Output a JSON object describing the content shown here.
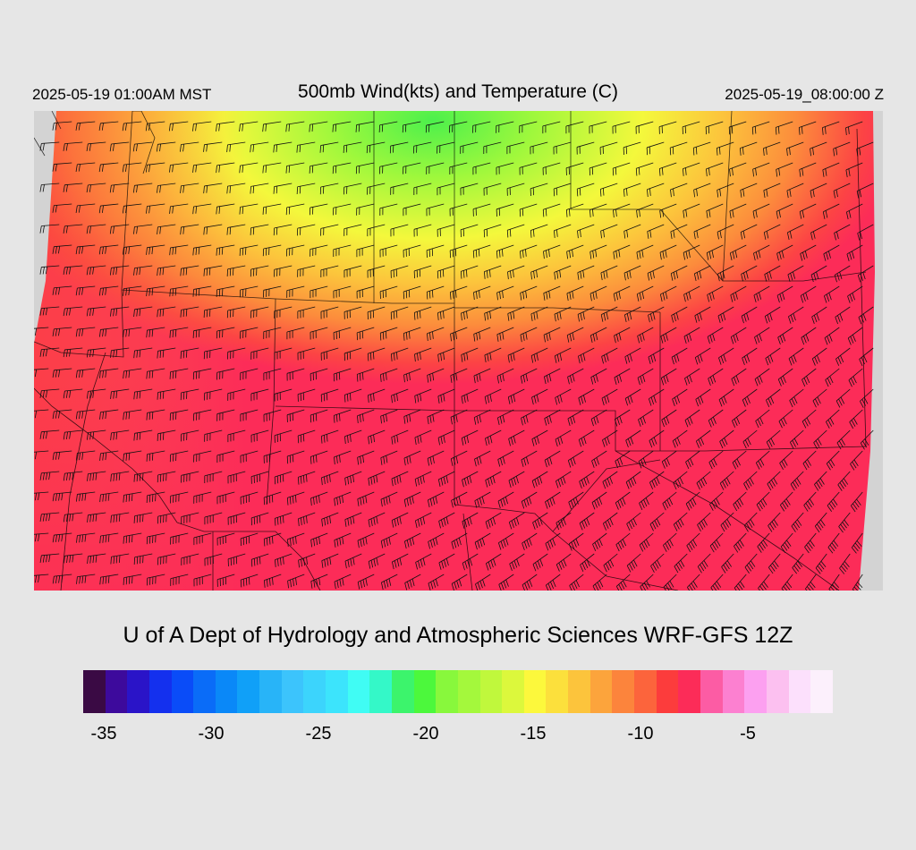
{
  "header": {
    "local_time": "2025-05-19 01:00AM MST",
    "title": "500mb Wind(kts) and Temperature (C)",
    "utc_time": "2025-05-19_08:00:00 Z"
  },
  "credit": "U of A Dept of Hydrology and Atmospheric Sciences WRF-GFS 12Z",
  "colorbar": {
    "colors": [
      "#3a0a44",
      "#3d0a9c",
      "#2a14c8",
      "#1430ee",
      "#0a4cf8",
      "#0a6cf8",
      "#0a88f8",
      "#10a0f8",
      "#28b4f8",
      "#3cc4fc",
      "#3cd4fc",
      "#3ce4fc",
      "#40fcf4",
      "#34f8c8",
      "#3cf46c",
      "#4cf83c",
      "#88f83c",
      "#a4f83c",
      "#c0f83c",
      "#dcf83c",
      "#fcf83c",
      "#fce03c",
      "#fcc43c",
      "#fca43c",
      "#fc843c",
      "#fc643c",
      "#fc3c3c",
      "#fc2c58",
      "#fc5ca4",
      "#fc80d0",
      "#fca0f0",
      "#fcc0f0",
      "#fce0fc",
      "#fcf0fc"
    ],
    "tick_labels": [
      "-35",
      "-30",
      "-25",
      "-20",
      "-15",
      "-10",
      "-5"
    ]
  },
  "map_field": {
    "variable": "500mb temperature",
    "units": "C",
    "region": "US Southwest",
    "coldest_area": "north-central (Wyoming/South Dakota), about -20 C",
    "warmest_area": "southern Arizona / New Mexico and Mexico border, about -9 to -8 C"
  }
}
